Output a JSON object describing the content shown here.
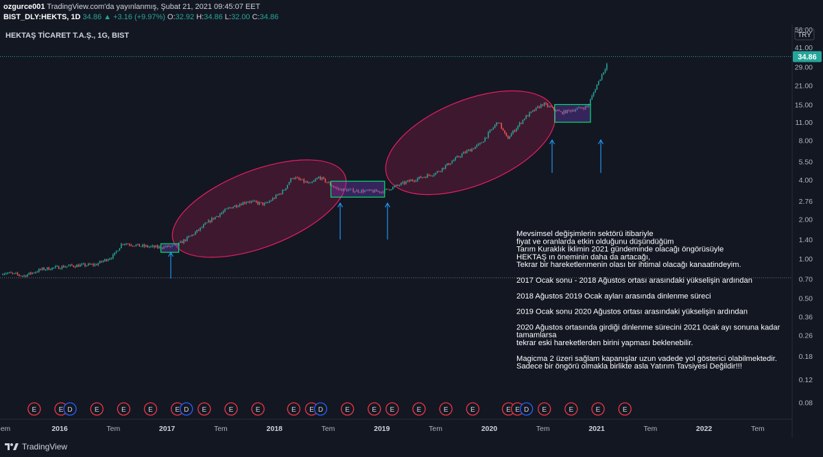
{
  "header": {
    "author": "ozgurce001",
    "published": "TradingView.com'da yayınlanmış, Şubat 21, 2021 09:45:07 EET",
    "symbol": "BIST_DLY:HEKTS, 1D",
    "last": "34.86",
    "change": "+3.16 (+9.97%)",
    "o_label": "O:",
    "o_value": "32.92",
    "h_label": "H:",
    "h_value": "34.86",
    "l_label": "L:",
    "l_value": "32.00",
    "c_label": "C:",
    "c_value": "34.86"
  },
  "chart_title": "HEKTAŞ TİCARET T.A.Ş., 1G, BIST",
  "currency": "TRY",
  "price_tag": "34.86",
  "colors": {
    "background": "#131722",
    "up": "#26a69a",
    "down": "#ef5350",
    "ellipse": "#e91e63",
    "box": "#00e676",
    "arrow": "#2196f3",
    "event": "#f23645"
  },
  "chart_data": {
    "type": "candlestick",
    "scale": "log",
    "y_ticks": [
      "56.00",
      "41.00",
      "29.00",
      "21.00",
      "15.00",
      "11.00",
      "8.00",
      "5.50",
      "4.00",
      "2.76",
      "2.00",
      "1.40",
      "1.00",
      "0.70",
      "0.50",
      "0.36",
      "0.26",
      "0.18",
      "0.12",
      "0.08"
    ],
    "x_ticks": [
      "em",
      "2016",
      "Tem",
      "2017",
      "Tem",
      "2018",
      "Tem",
      "2019",
      "Tem",
      "2020",
      "Tem",
      "2021",
      "Tem",
      "2022",
      "Tem"
    ],
    "price_path": [
      {
        "date": "2015-07",
        "price": 0.78
      },
      {
        "date": "2015-09",
        "price": 0.74
      },
      {
        "date": "2015-11",
        "price": 0.83
      },
      {
        "date": "2016-02",
        "price": 0.88
      },
      {
        "date": "2016-05",
        "price": 0.9
      },
      {
        "date": "2016-07",
        "price": 1.05
      },
      {
        "date": "2016-08",
        "price": 1.32
      },
      {
        "date": "2016-10",
        "price": 1.25
      },
      {
        "date": "2016-12",
        "price": 1.22
      },
      {
        "date": "2017-02",
        "price": 1.25
      },
      {
        "date": "2017-04",
        "price": 1.55
      },
      {
        "date": "2017-06",
        "price": 2.0
      },
      {
        "date": "2017-08",
        "price": 2.45
      },
      {
        "date": "2017-10",
        "price": 2.75
      },
      {
        "date": "2017-12",
        "price": 2.6
      },
      {
        "date": "2018-02",
        "price": 3.3
      },
      {
        "date": "2018-03",
        "price": 4.2
      },
      {
        "date": "2018-05",
        "price": 3.7
      },
      {
        "date": "2018-06",
        "price": 4.2
      },
      {
        "date": "2018-08",
        "price": 3.4
      },
      {
        "date": "2018-10",
        "price": 3.3
      },
      {
        "date": "2019-01",
        "price": 3.25
      },
      {
        "date": "2019-04",
        "price": 3.9
      },
      {
        "date": "2019-07",
        "price": 4.5
      },
      {
        "date": "2019-10",
        "price": 6.3
      },
      {
        "date": "2019-12",
        "price": 7.5
      },
      {
        "date": "2020-02",
        "price": 11.2
      },
      {
        "date": "2020-03",
        "price": 8.2
      },
      {
        "date": "2020-05",
        "price": 12.0
      },
      {
        "date": "2020-07",
        "price": 15.2
      },
      {
        "date": "2020-09",
        "price": 13.0
      },
      {
        "date": "2020-11",
        "price": 14.0
      },
      {
        "date": "2020-12",
        "price": 14.5
      },
      {
        "date": "2021-01",
        "price": 21.0
      },
      {
        "date": "2021-02a",
        "price": 29.0
      },
      {
        "date": "2021-02b",
        "price": 34.86
      }
    ],
    "boxes": [
      {
        "from": "2016-12",
        "to": "2017-02",
        "low": 1.12,
        "high": 1.3
      },
      {
        "from": "2018-07",
        "to": "2019-01",
        "low": 2.95,
        "high": 3.9
      },
      {
        "from": "2020-08",
        "to": "2020-12",
        "low": 11.0,
        "high": 15.0
      }
    ],
    "events": [
      {
        "date": "2015-10",
        "label": "E"
      },
      {
        "date": "2016-01",
        "label": "E"
      },
      {
        "date": "2016-02",
        "label": "D"
      },
      {
        "date": "2016-05",
        "label": "E"
      },
      {
        "date": "2016-08",
        "label": "E"
      },
      {
        "date": "2016-11",
        "label": "E"
      },
      {
        "date": "2017-02",
        "label": "E"
      },
      {
        "date": "2017-03",
        "label": "D"
      },
      {
        "date": "2017-05",
        "label": "E"
      },
      {
        "date": "2017-08",
        "label": "E"
      },
      {
        "date": "2017-11",
        "label": "E"
      },
      {
        "date": "2018-03",
        "label": "E"
      },
      {
        "date": "2018-05",
        "label": "E"
      },
      {
        "date": "2018-06",
        "label": "D"
      },
      {
        "date": "2018-09",
        "label": "E"
      },
      {
        "date": "2018-12",
        "label": "E"
      },
      {
        "date": "2019-02",
        "label": "E"
      },
      {
        "date": "2019-05",
        "label": "E"
      },
      {
        "date": "2019-08",
        "label": "E"
      },
      {
        "date": "2019-11",
        "label": "E"
      },
      {
        "date": "2020-03",
        "label": "E"
      },
      {
        "date": "2020-04",
        "label": "E"
      },
      {
        "date": "2020-05",
        "label": "D"
      },
      {
        "date": "2020-07",
        "label": "E"
      },
      {
        "date": "2020-10",
        "label": "E"
      },
      {
        "date": "2021-01",
        "label": "E"
      },
      {
        "date": "2021-04",
        "label": "E"
      }
    ]
  },
  "annotation_lines": [
    "Mevsimsel değişimlerin sektörü itibariyle",
    "fiyat ve oranlarda etkin olduğunu düşündüğüm",
    "Tarım Kuraklık İklimin 2021 gündeminde olacağı öngörüsüyle",
    "HEKTAŞ ın öneminin daha da artacağı,",
    "Tekrar bir hareketlenmenin olası bir ihtimal olacağı kanaatindeyim.",
    "",
    "2017 Ocak sonu - 2018 Ağustos ortası arasındaki yükselişin ardından",
    "",
    "2018 Ağustos 2019 Ocak ayları arasında dinlenme süreci",
    "",
    "2019 Ocak sonu 2020 Ağustos ortası arasındaki yükselişin ardından",
    "",
    "2020 Ağustos ortasında girdiği dinlenme sürecini 2021 0cak ayı sonuna kadar",
    "tamamlarsa",
    "tekrar eski hareketlerden birini yapması beklenebilir.",
    "",
    "Magicma 2 üzeri sağlam kapanışlar uzun vadede yol gösterici olabilmektedir.",
    "Sadece bir öngörü olmakla birlikte asla Yatırım Tavsiyesi Değildir!!!"
  ],
  "footer": {
    "brand": "TradingView"
  }
}
